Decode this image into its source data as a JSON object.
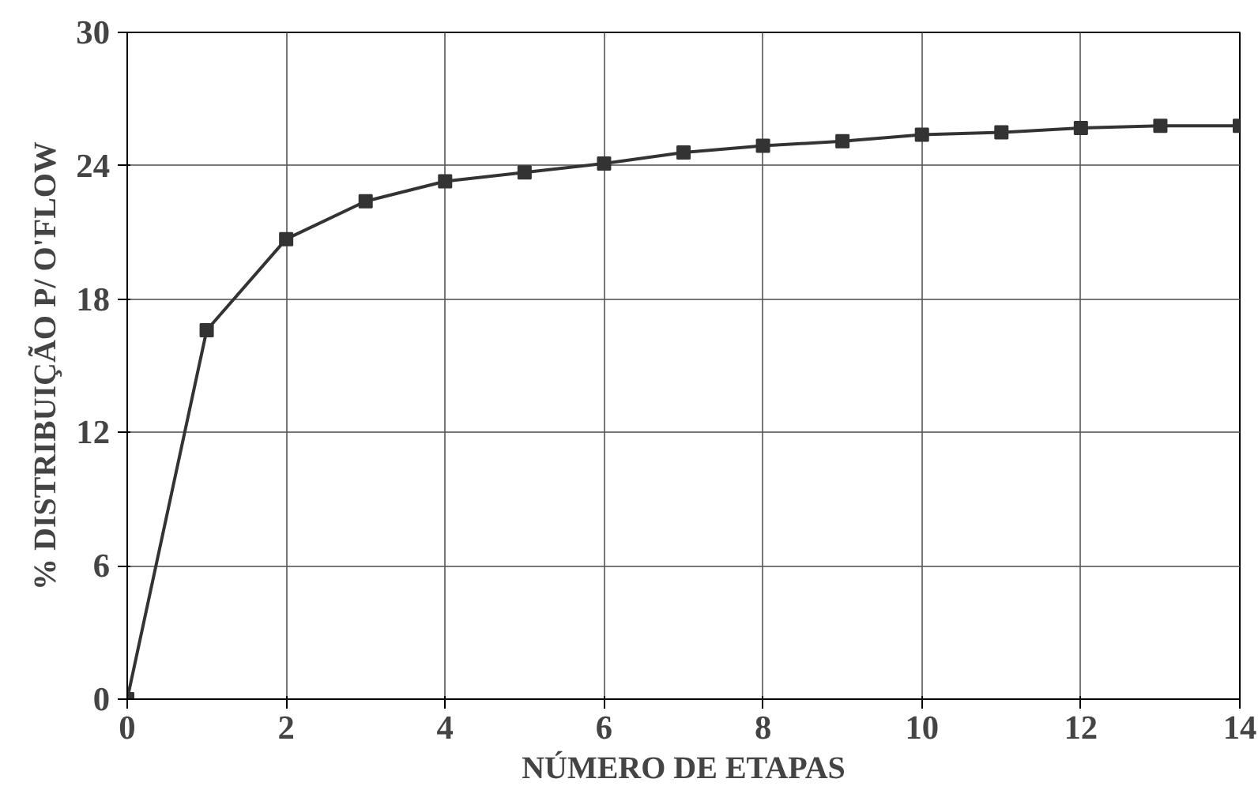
{
  "chart_data": {
    "type": "line",
    "xlabel": "NÚMERO DE ETAPAS",
    "ylabel": "% DISTRIBUIÇÃO P/ O'FLOW",
    "x": [
      0,
      1,
      2,
      3,
      4,
      5,
      6,
      7,
      8,
      9,
      10,
      11,
      12,
      13,
      14
    ],
    "series": [
      {
        "color": "#333333",
        "values": [
          0,
          16.6,
          20.7,
          22.4,
          23.3,
          23.7,
          24.1,
          24.6,
          24.9,
          25.1,
          25.4,
          25.5,
          25.7,
          25.8,
          25.8
        ]
      }
    ],
    "xlim": [
      0,
      14
    ],
    "ylim": [
      0,
      30
    ],
    "xticks": [
      0,
      2,
      4,
      6,
      8,
      10,
      12,
      14
    ],
    "yticks": [
      0,
      6,
      12,
      18,
      24,
      30
    ],
    "grid": true,
    "marker": "square",
    "line_style": "solid"
  }
}
